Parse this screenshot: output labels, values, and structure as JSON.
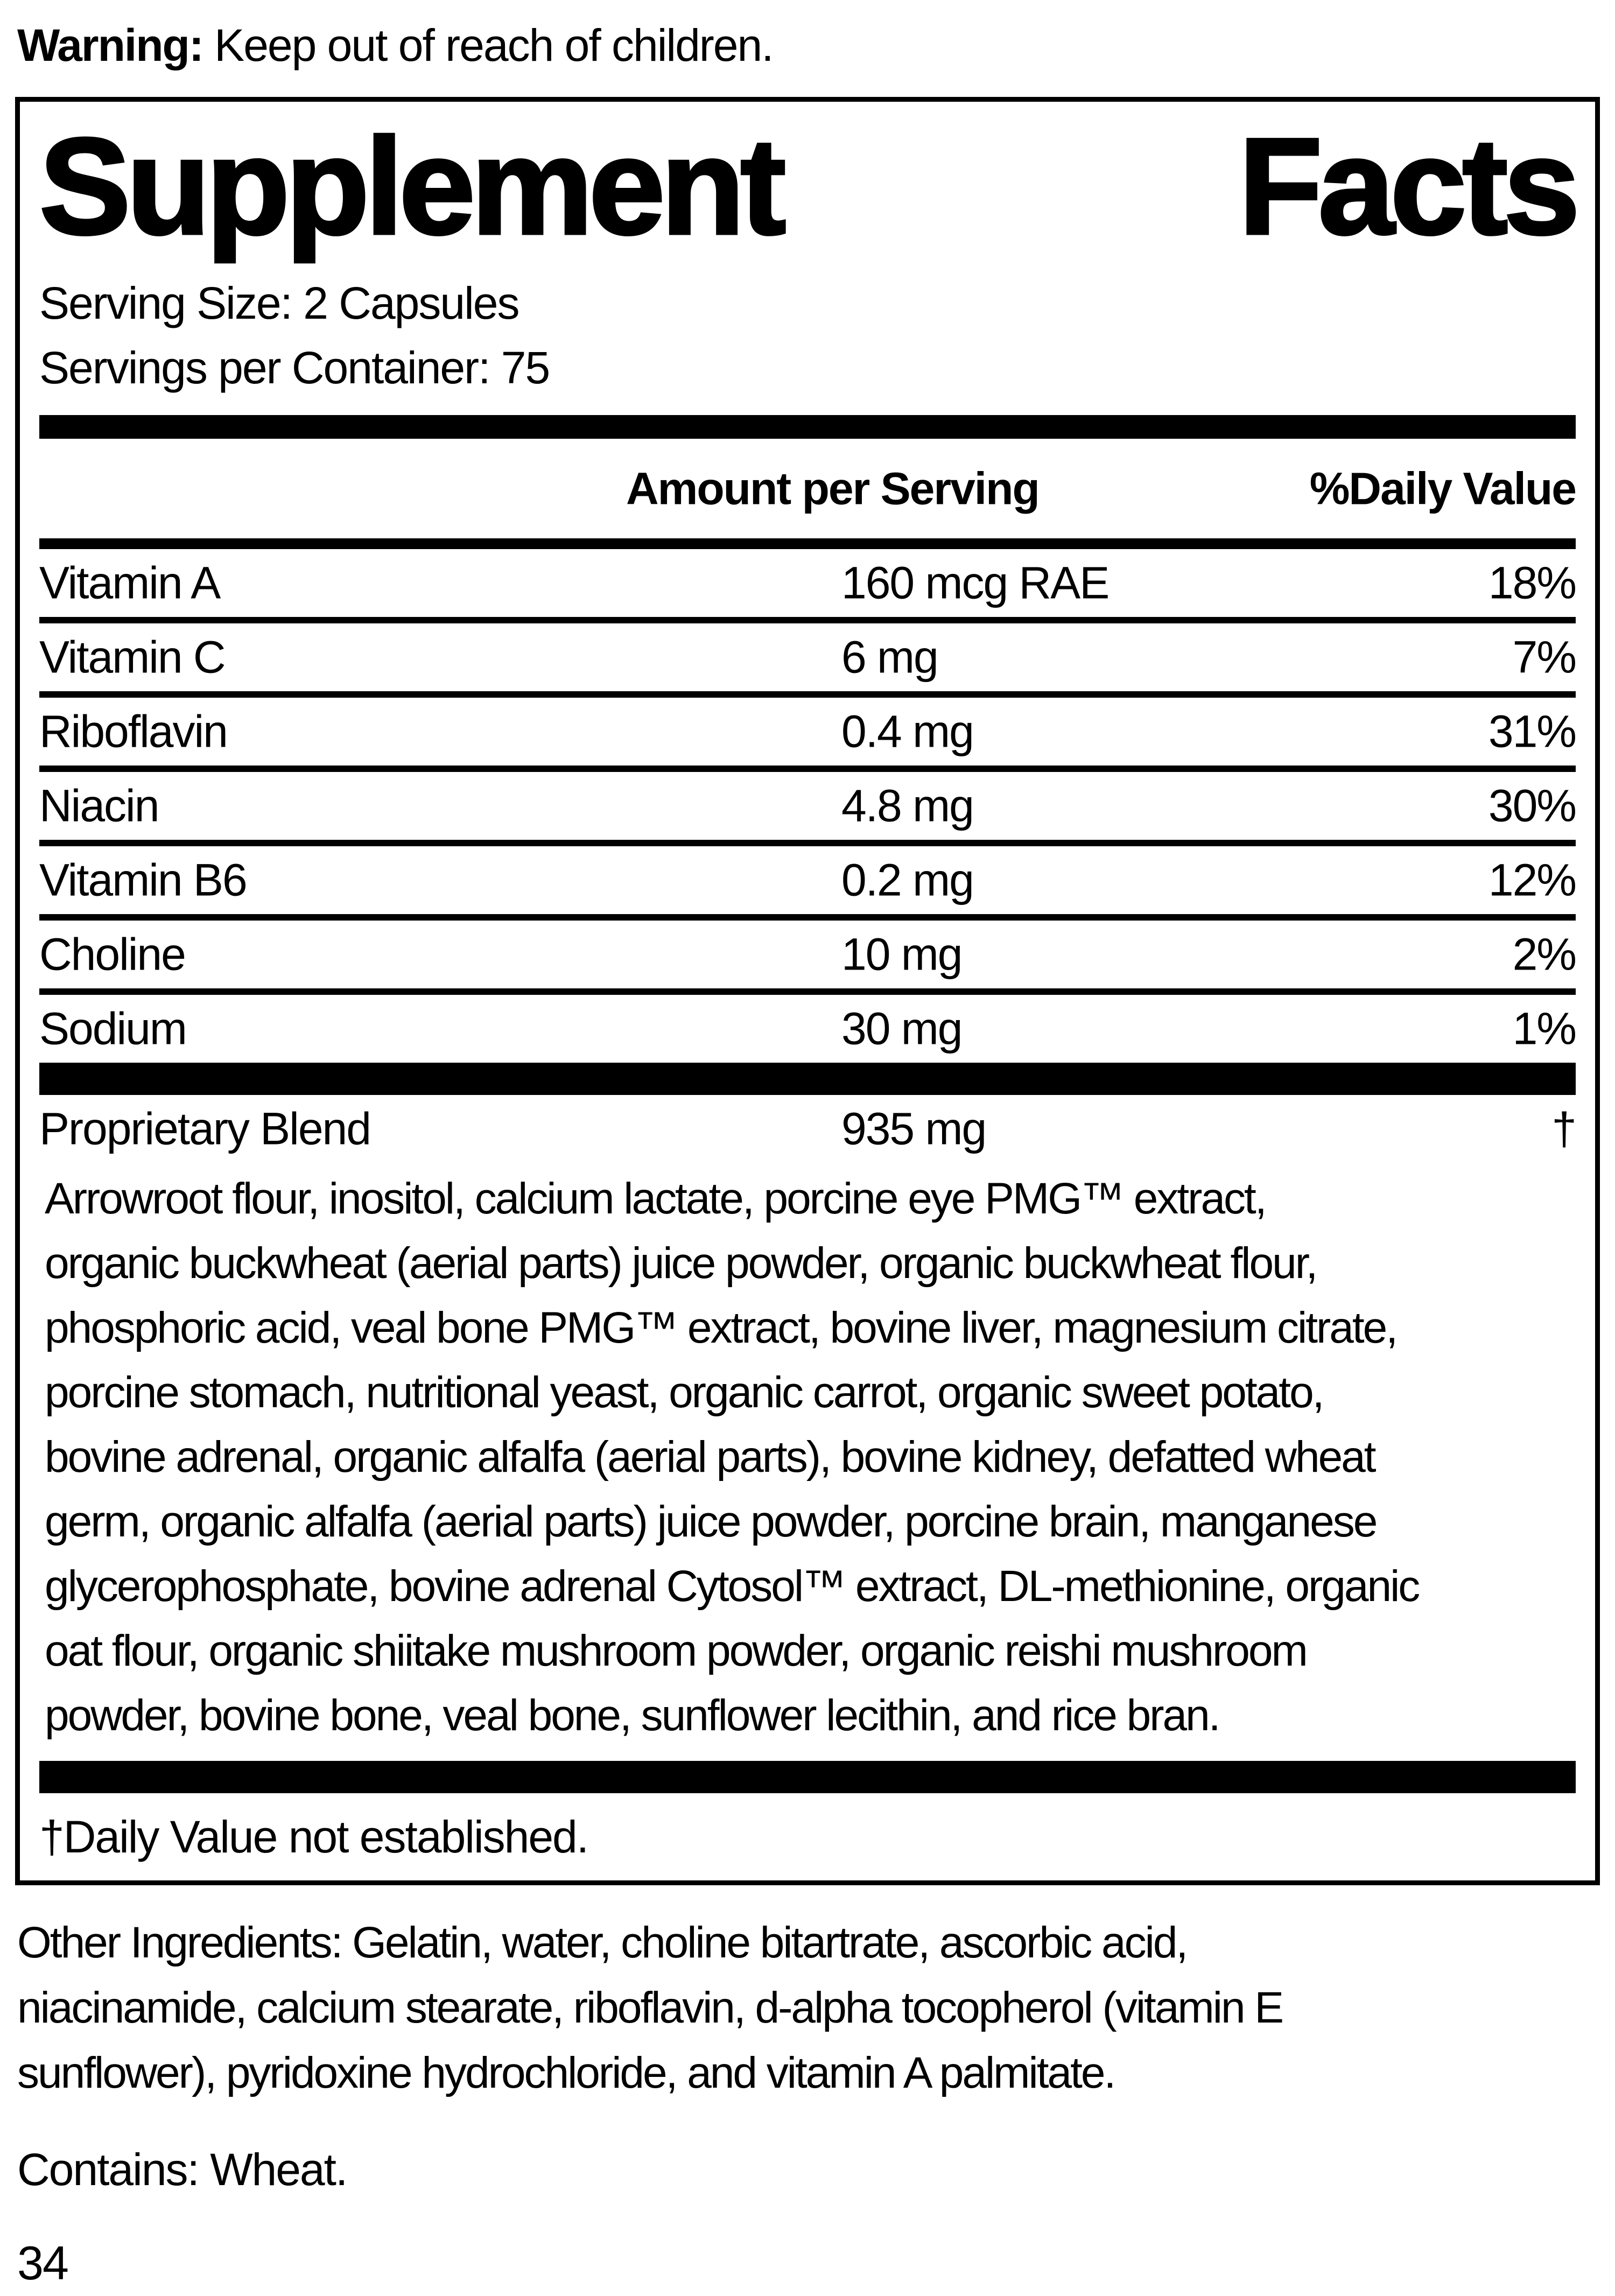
{
  "page": {
    "warning_label": "Warning:",
    "warning_text": " Keep out of reach of children.",
    "contains": "Contains: Wheat.",
    "page_number": "34",
    "other_ingredient_lines": [
      "Other Ingredients: Gelatin, water, choline bitartrate, ascorbic acid,",
      "niacinamide, calcium stearate, riboflavin, d-alpha tocopherol (vitamin E",
      "sunflower), pyridoxine hydrochloride, and vitamin A palmitate."
    ]
  },
  "panel": {
    "title_word1": "Supplement",
    "title_word2": "Facts",
    "serving_size": "Serving Size: 2 Capsules",
    "servings_per_container": "Servings per Container: 75",
    "header": {
      "amount": "Amount per Serving",
      "daily_value": "%Daily Value"
    },
    "nutrients": [
      {
        "name": "Vitamin A",
        "amount": "160 mcg RAE",
        "dv": "18%"
      },
      {
        "name": "Vitamin C",
        "amount": "6 mg",
        "dv": "7%"
      },
      {
        "name": "Riboflavin",
        "amount": "0.4 mg",
        "dv": "31%"
      },
      {
        "name": "Niacin",
        "amount": "4.8 mg",
        "dv": "30%"
      },
      {
        "name": "Vitamin B6",
        "amount": "0.2 mg",
        "dv": "12%"
      },
      {
        "name": "Choline",
        "amount": "10 mg",
        "dv": "2%"
      },
      {
        "name": "Sodium",
        "amount": "30 mg",
        "dv": "1%"
      }
    ],
    "proprietary": {
      "name": "Proprietary Blend",
      "amount": "935 mg",
      "dv": "†"
    },
    "ingredient_lines": [
      "Arrowroot flour, inositol, calcium lactate, porcine eye PMG™ extract,",
      "organic buckwheat (aerial parts) juice powder, organic buckwheat flour,",
      "phosphoric acid, veal bone PMG™ extract, bovine liver, magnesium citrate,",
      "porcine stomach, nutritional yeast, organic carrot, organic sweet potato,",
      "bovine adrenal, organic alfalfa (aerial parts), bovine kidney, defatted wheat",
      "germ, organic alfalfa (aerial parts) juice powder, porcine brain, manganese",
      "glycerophosphate, bovine adrenal Cytosol™ extract, DL-methionine, organic",
      "oat flour, organic shiitake mushroom powder, organic reishi mushroom",
      "powder, bovine bone, veal bone, sunflower lecithin, and rice bran."
    ],
    "footnote": "†Daily Value not established."
  },
  "colors": {
    "ink": "#000000",
    "paper": "#ffffff"
  }
}
